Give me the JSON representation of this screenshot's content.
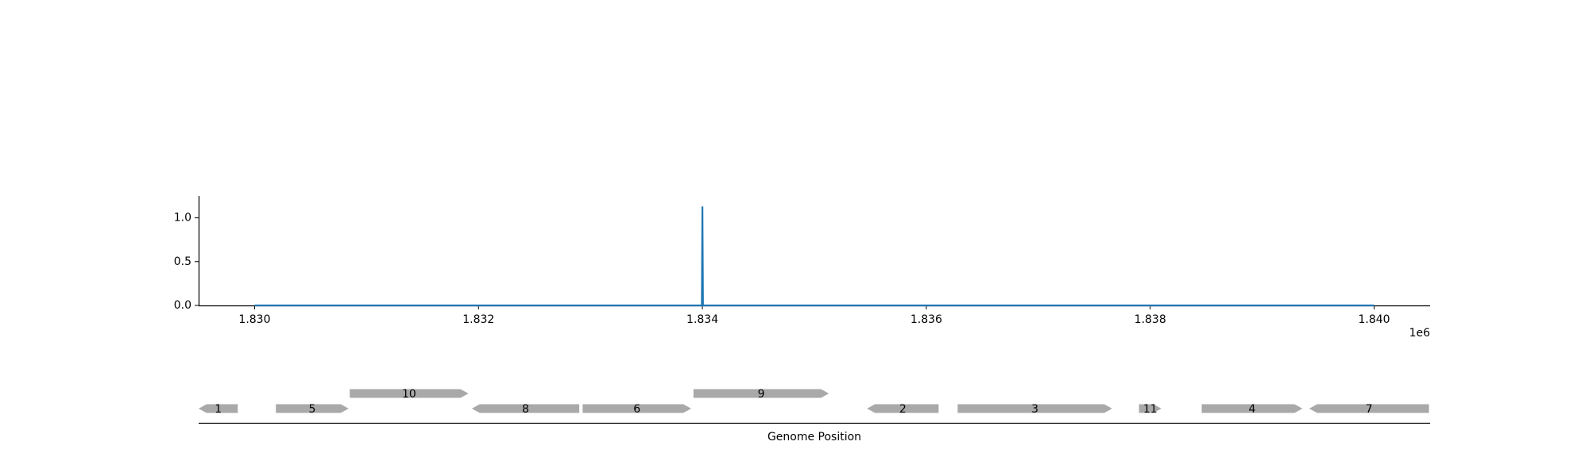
{
  "chart_data": [
    {
      "type": "line",
      "title": "",
      "xlabel": "",
      "ylabel": "",
      "x_offset_label": "1e6",
      "xlim": [
        1829500,
        1840500
      ],
      "ylim": [
        0,
        1.25
      ],
      "x_ticks": [
        1830000,
        1832000,
        1834000,
        1836000,
        1838000,
        1840000
      ],
      "x_tick_labels": [
        "1.830",
        "1.832",
        "1.834",
        "1.836",
        "1.838",
        "1.840"
      ],
      "y_ticks": [
        0,
        0.5,
        1.0
      ],
      "y_tick_labels": [
        "0.0",
        "0.5",
        "1.0"
      ],
      "grid": false,
      "colors": {
        "series": "#1f77b4",
        "axis": "#000000"
      },
      "series": [
        {
          "x": [
            1830000,
            1833995,
            1834000,
            1834005,
            1840000
          ],
          "y": [
            0,
            0,
            1.13,
            0,
            0
          ]
        }
      ]
    },
    {
      "type": "gene-map",
      "xlabel": "Genome Position",
      "xlim": [
        1829500,
        1840500
      ],
      "colors": {
        "gene": "#a9a9a9",
        "baseline": "#000000"
      },
      "genes": [
        {
          "label": "1",
          "start": 1829500,
          "end": 1829850,
          "strand": "-",
          "track": 0
        },
        {
          "label": "5",
          "start": 1830190,
          "end": 1830840,
          "strand": "+",
          "track": 0
        },
        {
          "label": "10",
          "start": 1830850,
          "end": 1831910,
          "strand": "+",
          "track": 1
        },
        {
          "label": "8",
          "start": 1831940,
          "end": 1832900,
          "strand": "-",
          "track": 0
        },
        {
          "label": "6",
          "start": 1832930,
          "end": 1833900,
          "strand": "+",
          "track": 0
        },
        {
          "label": "9",
          "start": 1833920,
          "end": 1835130,
          "strand": "+",
          "track": 1
        },
        {
          "label": "2",
          "start": 1835470,
          "end": 1836110,
          "strand": "-",
          "track": 0
        },
        {
          "label": "3",
          "start": 1836280,
          "end": 1837660,
          "strand": "+",
          "track": 0
        },
        {
          "label": "11",
          "start": 1837900,
          "end": 1838100,
          "strand": "+",
          "track": 0
        },
        {
          "label": "4",
          "start": 1838460,
          "end": 1839360,
          "strand": "+",
          "track": 0
        },
        {
          "label": "7",
          "start": 1839420,
          "end": 1840490,
          "strand": "-",
          "track": 0
        }
      ]
    }
  ]
}
